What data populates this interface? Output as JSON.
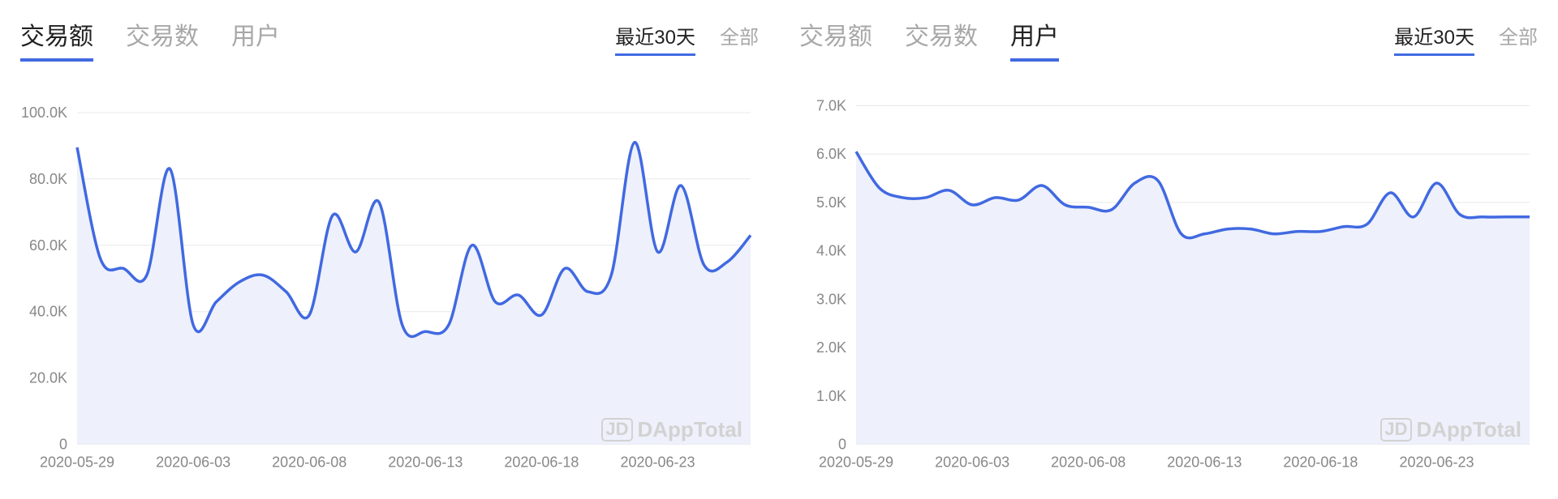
{
  "panels": [
    {
      "tabs": [
        {
          "label": "交易额",
          "active": true
        },
        {
          "label": "交易数",
          "active": false
        },
        {
          "label": "用户",
          "active": false
        }
      ],
      "ranges": [
        {
          "label": "最近30天",
          "active": true
        },
        {
          "label": "全部",
          "active": false
        }
      ],
      "chart": {
        "type": "line-area",
        "line_color": "#4169e1",
        "area_color": "#eef1fb",
        "line_width": 3.5,
        "background_color": "#ffffff",
        "grid_color": "#e8e8e8",
        "tick_font_size": 18,
        "tick_color": "#888888",
        "y": {
          "min": 0,
          "max": 105000,
          "ticks": [
            0,
            20000,
            40000,
            60000,
            80000,
            100000
          ],
          "tick_labels": [
            "0",
            "20.0K",
            "40.0K",
            "60.0K",
            "80.0K",
            "100.0K"
          ]
        },
        "x": {
          "min": 0,
          "max": 29,
          "tick_positions": [
            0,
            5,
            10,
            15,
            20,
            25
          ],
          "tick_labels": [
            "2020-05-29",
            "2020-06-03",
            "2020-06-08",
            "2020-06-13",
            "2020-06-18",
            "2020-06-23"
          ]
        },
        "series": {
          "x": [
            0,
            1,
            2,
            3,
            4,
            5,
            6,
            7,
            8,
            9,
            10,
            11,
            12,
            13,
            14,
            15,
            16,
            17,
            18,
            19,
            20,
            21,
            22,
            23,
            24,
            25,
            26,
            27,
            28,
            29
          ],
          "y": [
            89500,
            56000,
            53000,
            51000,
            83000,
            36000,
            43000,
            49000,
            51000,
            46000,
            39000,
            69000,
            58000,
            73000,
            36000,
            34000,
            36000,
            60000,
            43000,
            45000,
            39000,
            53000,
            46000,
            51000,
            91000,
            58000,
            78000,
            54000,
            55000,
            63000
          ]
        }
      },
      "watermark": "DAppTotal"
    },
    {
      "tabs": [
        {
          "label": "交易额",
          "active": false
        },
        {
          "label": "交易数",
          "active": false
        },
        {
          "label": "用户",
          "active": true
        }
      ],
      "ranges": [
        {
          "label": "最近30天",
          "active": true
        },
        {
          "label": "全部",
          "active": false
        }
      ],
      "chart": {
        "type": "line-area",
        "line_color": "#4169e1",
        "area_color": "#eef1fb",
        "line_width": 3.5,
        "background_color": "#ffffff",
        "grid_color": "#e8e8e8",
        "tick_font_size": 18,
        "tick_color": "#888888",
        "y": {
          "min": 0,
          "max": 7200,
          "ticks": [
            0,
            1000,
            2000,
            3000,
            4000,
            5000,
            6000,
            7000
          ],
          "tick_labels": [
            "0",
            "1.0K",
            "2.0K",
            "3.0K",
            "4.0K",
            "5.0K",
            "6.0K",
            "7.0K"
          ]
        },
        "x": {
          "min": 0,
          "max": 29,
          "tick_positions": [
            0,
            5,
            10,
            15,
            20,
            25
          ],
          "tick_labels": [
            "2020-05-29",
            "2020-06-03",
            "2020-06-08",
            "2020-06-13",
            "2020-06-18",
            "2020-06-23"
          ]
        },
        "series": {
          "x": [
            0,
            1,
            2,
            3,
            4,
            5,
            6,
            7,
            8,
            9,
            10,
            11,
            12,
            13,
            14,
            15,
            16,
            17,
            18,
            19,
            20,
            21,
            22,
            23,
            24,
            25,
            26,
            27,
            28,
            29
          ],
          "y": [
            6050,
            5300,
            5100,
            5100,
            5250,
            4950,
            5100,
            5050,
            5350,
            4950,
            4900,
            4850,
            5400,
            5450,
            4350,
            4350,
            4450,
            4450,
            4350,
            4400,
            4400,
            4500,
            4550,
            5200,
            4700,
            5400,
            4750,
            4700,
            4700,
            4700
          ]
        }
      },
      "watermark": "DAppTotal"
    }
  ]
}
